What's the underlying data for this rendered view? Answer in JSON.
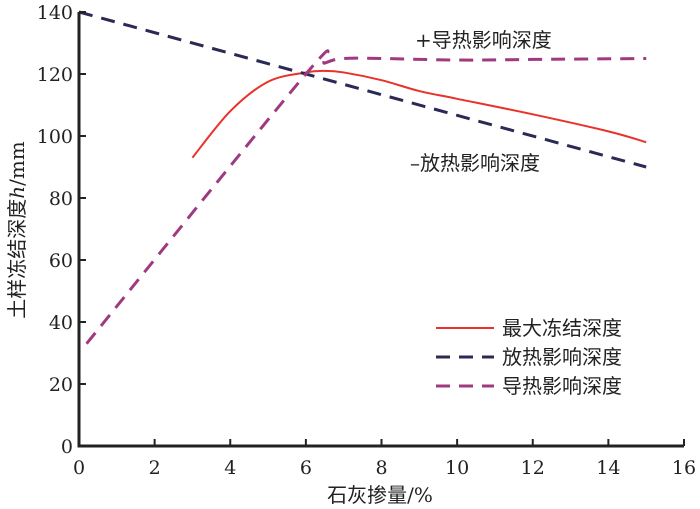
{
  "chart_data": {
    "type": "line",
    "title": "",
    "xlabel": "石灰掺量/%",
    "ylabel_prefix": "土样冻结深度",
    "ylabel_var": "h",
    "ylabel_unit": "/mm",
    "xlim": [
      0,
      16
    ],
    "ylim": [
      0,
      140
    ],
    "xticks": [
      0,
      2,
      4,
      6,
      8,
      10,
      12,
      14,
      16
    ],
    "yticks": [
      0,
      20,
      40,
      60,
      80,
      100,
      120,
      140
    ],
    "grid": false,
    "legend_position": "bottom-right",
    "series": [
      {
        "name": "最大冻结深度",
        "color": "#e8322a",
        "dash": "solid",
        "x": [
          3,
          4,
          5,
          6,
          6.5,
          7,
          8,
          9,
          10,
          12,
          14,
          15
        ],
        "y": [
          93,
          108,
          117.5,
          120.5,
          121,
          120.5,
          118,
          114.5,
          112,
          107,
          101.5,
          98
        ]
      },
      {
        "name": "放热影响深度",
        "color": "#2b2a55",
        "dash": "dashed",
        "x": [
          0,
          15
        ],
        "y": [
          140,
          90
        ]
      },
      {
        "name": "导热影响深度",
        "color": "#a03a80",
        "dash": "dashed",
        "x": [
          0.2,
          6,
          6.5,
          7,
          8,
          10,
          12,
          15
        ],
        "y": [
          33,
          120,
          123.5,
          125,
          125,
          124.5,
          124.7,
          125
        ]
      }
    ],
    "annotations": [
      {
        "text": "+导热影响深度"
      },
      {
        "text": "–放热影响深度"
      }
    ]
  }
}
